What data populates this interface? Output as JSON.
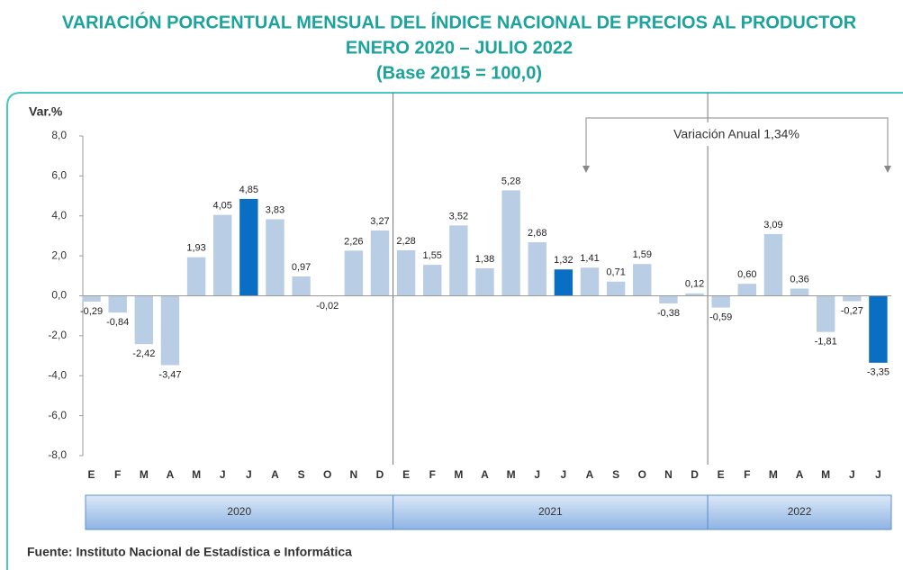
{
  "chart_data": {
    "type": "bar",
    "title": "VARIACIÓN PORCENTUAL MENSUAL DEL ÍNDICE NACIONAL DE PRECIOS AL PRODUCTOR",
    "subtitle": "ENERO 2020 – JULIO 2022",
    "base": "(Base 2015 = 100,0)",
    "y_label": "Var.%",
    "source": "Fuente: Instituto Nacional de Estadística e Informática",
    "annotation": "Variación Anual 1,34%",
    "groups": [
      "2020",
      "2021",
      "2022"
    ],
    "categories": [
      "E",
      "F",
      "M",
      "A",
      "M",
      "J",
      "J",
      "A",
      "S",
      "O",
      "N",
      "D",
      "E",
      "F",
      "M",
      "A",
      "M",
      "J",
      "J",
      "A",
      "S",
      "O",
      "N",
      "D",
      "E",
      "F",
      "M",
      "A",
      "M",
      "J",
      "J"
    ],
    "values": [
      -0.29,
      -0.84,
      -2.42,
      -3.47,
      1.93,
      4.05,
      4.85,
      3.83,
      0.97,
      -0.02,
      2.26,
      3.27,
      2.28,
      1.55,
      3.52,
      1.38,
      5.28,
      2.68,
      1.32,
      1.41,
      0.71,
      1.59,
      -0.38,
      0.12,
      -0.59,
      0.6,
      3.09,
      0.36,
      -1.81,
      -0.27,
      -3.35
    ],
    "value_labels": [
      "-0,29",
      "-0,84",
      "-2,42",
      "-3,47",
      "1,93",
      "4,05",
      "4,85",
      "3,83",
      "0,97",
      "-0,02",
      "2,26",
      "3,27",
      "2,28",
      "1,55",
      "3,52",
      "1,38",
      "5,28",
      "2,68",
      "1,32",
      "1,41",
      "0,71",
      "1,59",
      "-0,38",
      "0,12",
      "-0,59",
      "0,60",
      "3,09",
      "0,36",
      "-1,81",
      "-0,27",
      "-3,35"
    ],
    "colors": [
      "#b9cde5",
      "#b9cde5",
      "#b9cde5",
      "#b9cde5",
      "#b9cde5",
      "#b9cde5",
      "#0a6fc2",
      "#b9cde5",
      "#b9cde5",
      "#b9cde5",
      "#b9cde5",
      "#b9cde5",
      "#b9cde5",
      "#b9cde5",
      "#b9cde5",
      "#b9cde5",
      "#b9cde5",
      "#b9cde5",
      "#0a6fc2",
      "#b9cde5",
      "#b9cde5",
      "#b9cde5",
      "#b9cde5",
      "#b9cde5",
      "#b9cde5",
      "#b9cde5",
      "#b9cde5",
      "#b9cde5",
      "#b9cde5",
      "#b9cde5",
      "#0a6fc2"
    ],
    "ylim": [
      -8,
      8
    ],
    "yticks": [
      {
        "value": 8,
        "label": "8,0"
      },
      {
        "value": 6,
        "label": "6,0"
      },
      {
        "value": 4,
        "label": "4,0"
      },
      {
        "value": 2,
        "label": "2,0"
      },
      {
        "value": 0,
        "label": "0,0"
      },
      {
        "value": -2,
        "label": "-2,0"
      },
      {
        "value": -4,
        "label": "-4,0"
      },
      {
        "value": -6,
        "label": "-6,0"
      },
      {
        "value": -8,
        "label": "-8,0"
      }
    ]
  }
}
